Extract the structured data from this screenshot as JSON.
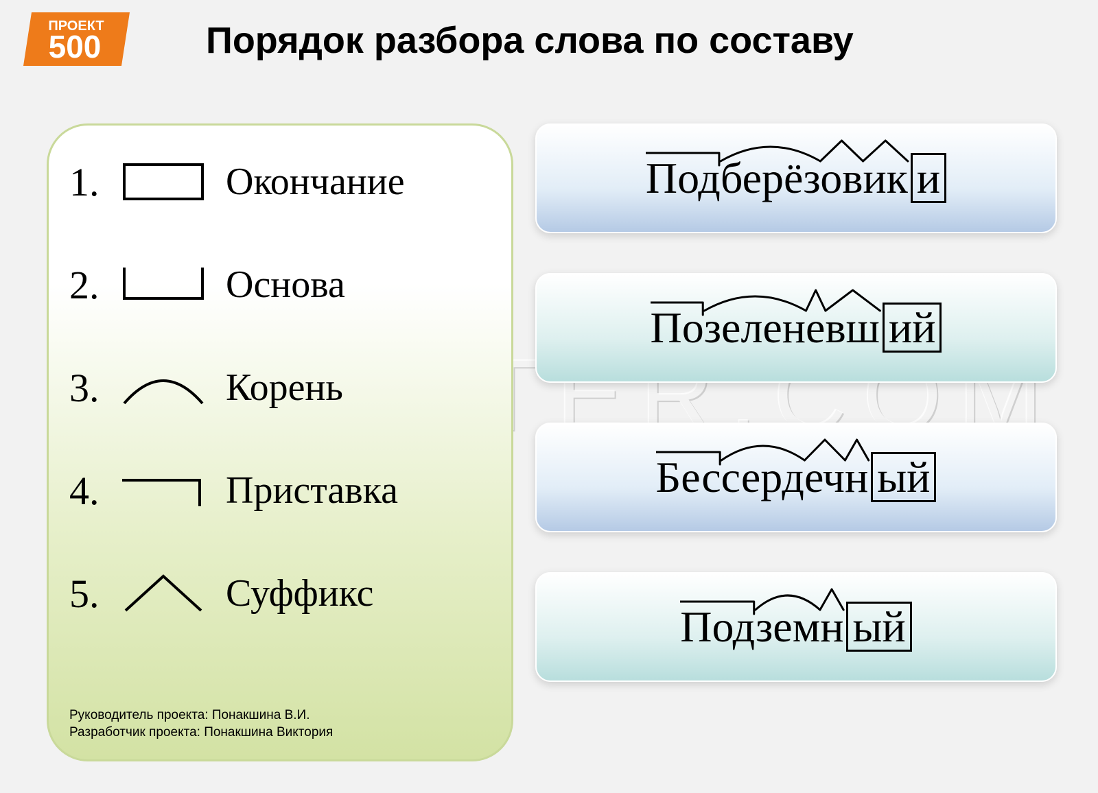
{
  "title": "Порядок разбора слова по составу",
  "logo": {
    "top_text": "ПРОЕКТ",
    "bottom_text": "500",
    "bg_color": "#ee7b1a",
    "fg_color": "#ffffff"
  },
  "watermark": "DIPOSTER.COM",
  "legend": [
    {
      "num": "1.",
      "label": "Окончание",
      "symbol": "box"
    },
    {
      "num": "2.",
      "label": "Основа",
      "symbol": "bracket"
    },
    {
      "num": "3.",
      "label": "Корень",
      "symbol": "arc"
    },
    {
      "num": "4.",
      "label": "Приставка",
      "symbol": "prefix"
    },
    {
      "num": "5.",
      "label": "Суффикс",
      "symbol": "caret"
    }
  ],
  "credits": [
    "Руководитель проекта: Понакшина В.И.",
    "Разработчик проекта: Понакшина Виктория"
  ],
  "examples": [
    {
      "gradient": "grad-blue",
      "segments": [
        {
          "text": "Под",
          "mark": "prefix"
        },
        {
          "text": "берёз",
          "mark": "arc"
        },
        {
          "text": "ов",
          "mark": "caret"
        },
        {
          "text": "ик",
          "mark": "caret"
        },
        {
          "text": "и",
          "mark": "box"
        }
      ],
      "base_ends_before": 4
    },
    {
      "gradient": "grad-teal",
      "segments": [
        {
          "text": "По",
          "mark": "prefix"
        },
        {
          "text": "зелен",
          "mark": "arc"
        },
        {
          "text": "е",
          "mark": "caret"
        },
        {
          "text": "вш",
          "mark": "caret"
        },
        {
          "text": "ий",
          "mark": "box"
        }
      ],
      "base_ends_before": 4
    },
    {
      "gradient": "grad-blue",
      "segments": [
        {
          "text": "Бес",
          "mark": "prefix"
        },
        {
          "text": "серд",
          "mark": "arc"
        },
        {
          "text": "еч",
          "mark": "caret"
        },
        {
          "text": "н",
          "mark": "caret"
        },
        {
          "text": "ый",
          "mark": "box"
        }
      ],
      "base_ends_before": 4
    },
    {
      "gradient": "grad-teal",
      "segments": [
        {
          "text": "Под",
          "mark": "prefix"
        },
        {
          "text": "зем",
          "mark": "arc"
        },
        {
          "text": "н",
          "mark": "caret"
        },
        {
          "text": "ый",
          "mark": "box"
        }
      ],
      "base_ends_before": 3
    }
  ],
  "style": {
    "title_fontsize": 54,
    "legend_fontsize": 56,
    "word_fontsize": 64,
    "mark_stroke": "#000000",
    "mark_stroke_width": 3,
    "panel_border_color": "#c9d99a",
    "panel_gradient": [
      "#ffffff",
      "#e6efc9",
      "#d3e2a4"
    ],
    "card_gradients": {
      "grad-blue": [
        "#ffffff",
        "#e2edf7",
        "#b5cae5"
      ],
      "grad-teal": [
        "#ffffff",
        "#def0ef",
        "#b8dedd"
      ]
    }
  }
}
